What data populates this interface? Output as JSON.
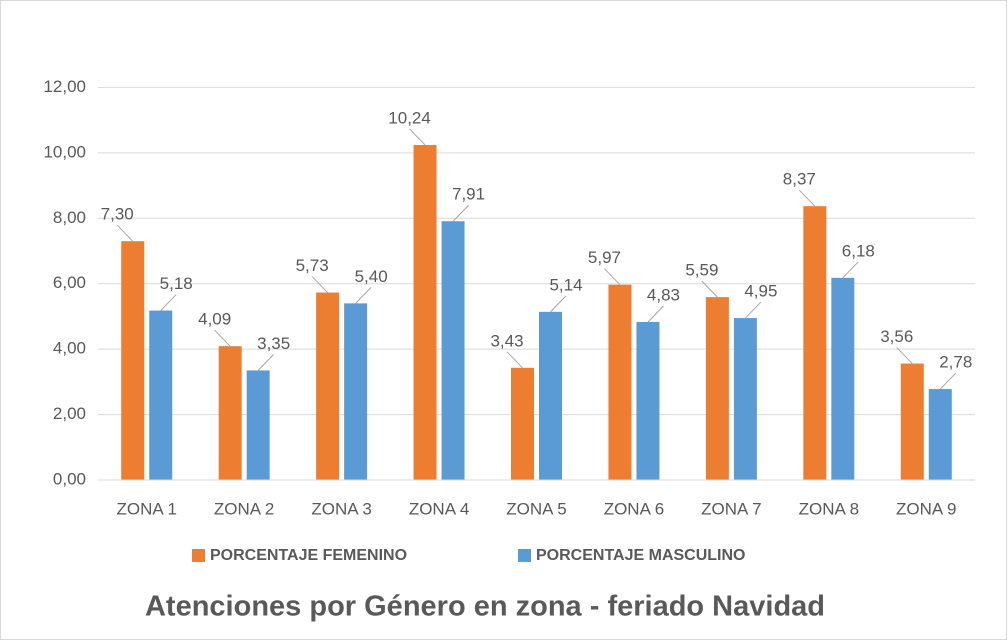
{
  "chart_data": {
    "type": "bar",
    "title": "Atenciones por Género en zona - feriado Navidad",
    "categories": [
      "ZONA 1",
      "ZONA 2",
      "ZONA 3",
      "ZONA 4",
      "ZONA 5",
      "ZONA 6",
      "ZONA 7",
      "ZONA 8",
      "ZONA 9"
    ],
    "series": [
      {
        "name": "PORCENTAJE FEMENINO",
        "color": "#ed7d31",
        "values": [
          7.3,
          4.09,
          5.73,
          10.24,
          3.43,
          5.97,
          5.59,
          8.37,
          3.56
        ],
        "value_labels": [
          "7,30",
          "4,09",
          "5,73",
          "10,24",
          "3,43",
          "5,97",
          "5,59",
          "8,37",
          "3,56"
        ]
      },
      {
        "name": "PORCENTAJE MASCULINO",
        "color": "#5b9bd5",
        "values": [
          5.18,
          3.35,
          5.4,
          7.91,
          5.14,
          4.83,
          4.95,
          6.18,
          2.78
        ],
        "value_labels": [
          "5,18",
          "3,35",
          "5,40",
          "7,91",
          "5,14",
          "4,83",
          "4,95",
          "6,18",
          "2,78"
        ]
      }
    ],
    "ylim": [
      0,
      14
    ],
    "yticks": [
      {
        "value": 0,
        "label": "0,00"
      },
      {
        "value": 2,
        "label": "2,00"
      },
      {
        "value": 4,
        "label": "4,00"
      },
      {
        "value": 6,
        "label": "6,00"
      },
      {
        "value": 8,
        "label": "8,00"
      },
      {
        "value": 10,
        "label": "10,00"
      },
      {
        "value": 12,
        "label": "12,00"
      }
    ],
    "grid": true,
    "legend": "bottom"
  }
}
